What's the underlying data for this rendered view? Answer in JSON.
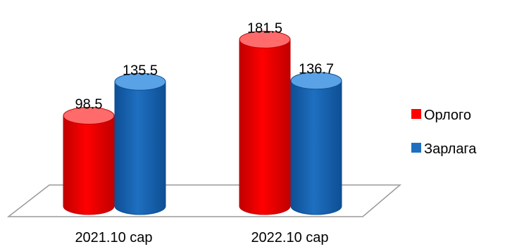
{
  "chart_data": {
    "type": "bar",
    "style": "3d-cylinder",
    "categories": [
      "2021.10 сар",
      "2022.10 сар"
    ],
    "series": [
      {
        "name": "Орлого",
        "values": [
          98.5,
          181.5
        ],
        "labels": [
          "98.5",
          "181.5"
        ]
      },
      {
        "name": "Зарлага",
        "values": [
          135.5,
          136.7
        ],
        "labels": [
          "135.5",
          "136.7"
        ]
      }
    ],
    "ylim": [
      0,
      200
    ],
    "grid": false,
    "legend_position": "right",
    "colors": {
      "series": [
        "#ff0000",
        "#1f6fc0"
      ],
      "series_dark": [
        "#c00000",
        "#0d4f94"
      ],
      "series_light": [
        "#ff6b6b",
        "#5aa2e6"
      ],
      "floor_stroke": "#9a9a9a"
    }
  }
}
